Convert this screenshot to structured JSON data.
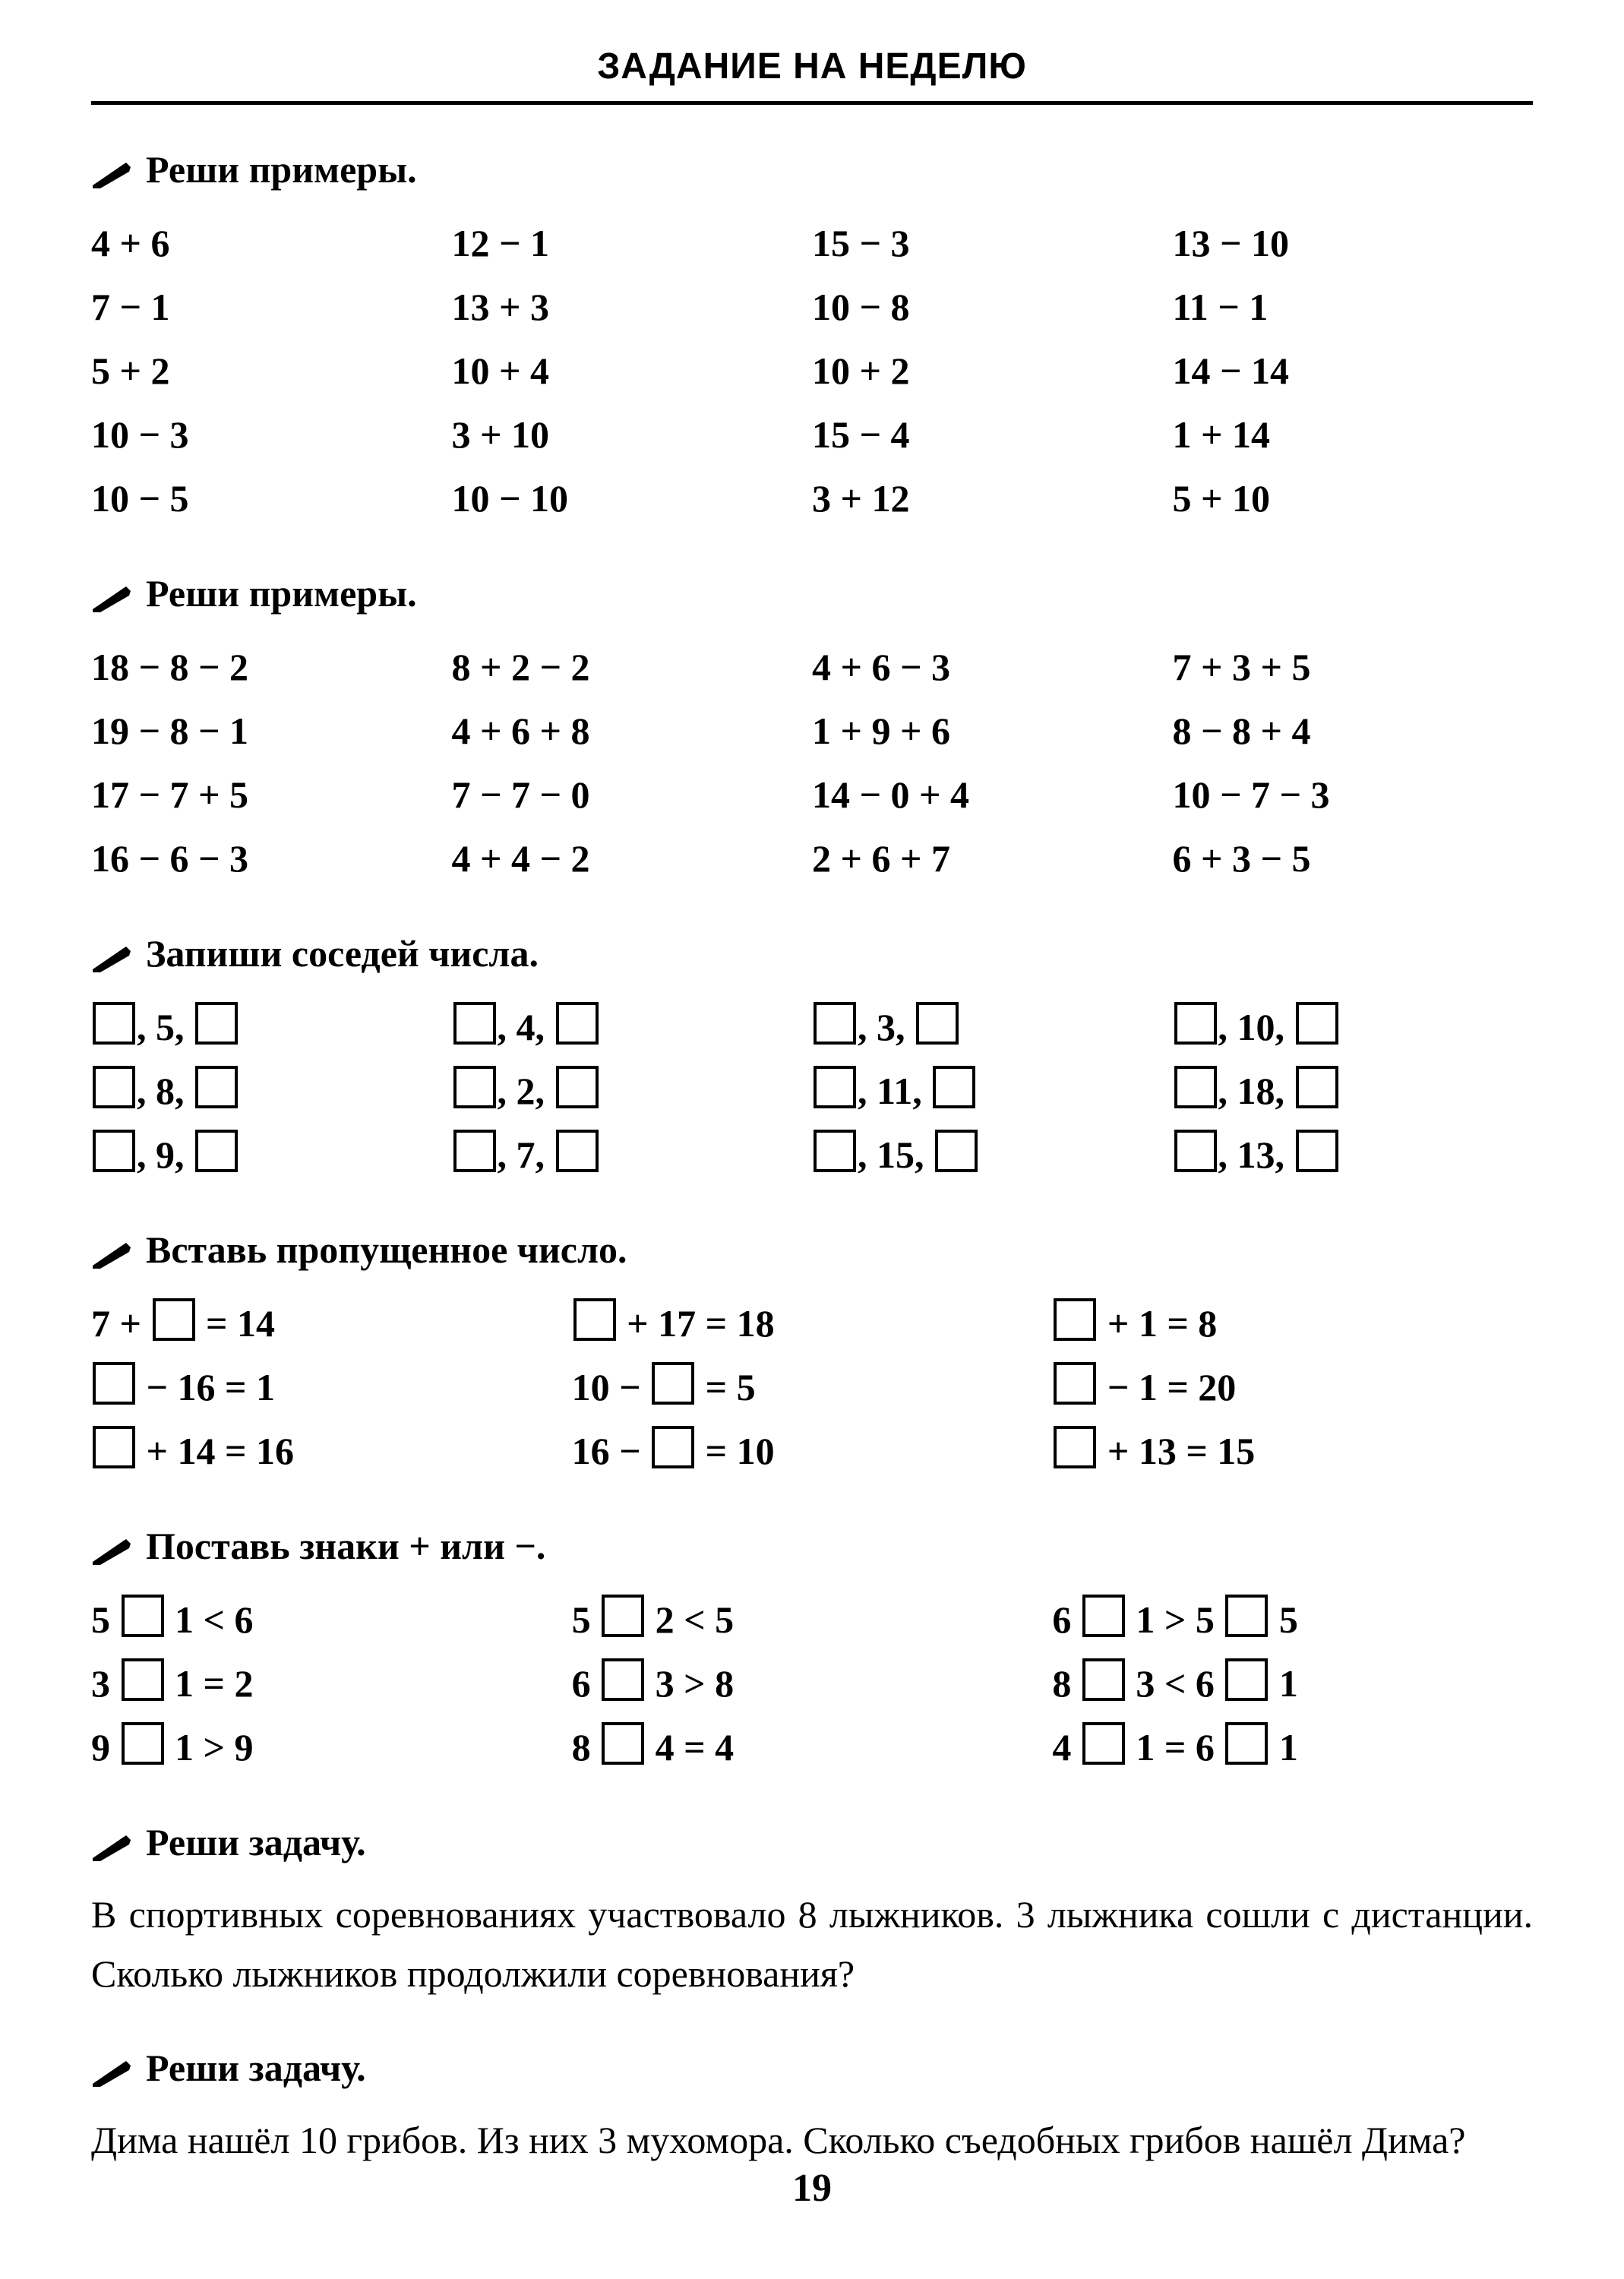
{
  "header": "ЗАДАНИЕ НА НЕДЕЛЮ",
  "page_number": "19",
  "pencil_svg_fill": "#000000",
  "sections": {
    "s1": {
      "title": "Реши примеры.",
      "cols": [
        [
          "4 + 6",
          "7 − 1",
          "5 + 2",
          "10 − 3",
          "10 − 5"
        ],
        [
          "12 − 1",
          "13 + 3",
          "10 + 4",
          "3 + 10",
          "10 − 10"
        ],
        [
          "15 − 3",
          "10 − 8",
          "10 + 2",
          "15 − 4",
          "3 + 12"
        ],
        [
          "13 − 10",
          "11 − 1",
          "14 − 14",
          "1 + 14",
          "5 + 10"
        ]
      ]
    },
    "s2": {
      "title": "Реши примеры.",
      "cols": [
        [
          "18 − 8 − 2",
          "19 − 8 − 1",
          "17 − 7 + 5",
          "16 − 6 − 3"
        ],
        [
          "8 + 2 − 2",
          "4 + 6 + 8",
          "7 − 7 − 0",
          "4 + 4 − 2"
        ],
        [
          "4 + 6 − 3",
          "1 + 9 + 6",
          "14 − 0 + 4",
          "2 + 6 + 7"
        ],
        [
          "7 + 3 + 5",
          "8 − 8 + 4",
          "10 − 7 − 3",
          "6 + 3 − 5"
        ]
      ]
    },
    "s3": {
      "title": "Запиши соседей числа.",
      "cols": [
        [
          "5",
          "8",
          "9"
        ],
        [
          "4",
          "2",
          "7"
        ],
        [
          "3",
          "11",
          "15"
        ],
        [
          "10",
          "18",
          "13"
        ]
      ]
    },
    "s4": {
      "title": "Вставь пропущенное число.",
      "cols": [
        [
          {
            "pre": "7 + ",
            "post": " = 14"
          },
          {
            "pre": "",
            "post": " − 16 = 1"
          },
          {
            "pre": "",
            "post": " + 14 = 16"
          }
        ],
        [
          {
            "pre": "",
            "post": " + 17 = 18"
          },
          {
            "pre": "10 − ",
            "post": " = 5"
          },
          {
            "pre": "16 − ",
            "post": " = 10"
          }
        ],
        [
          {
            "pre": "",
            "post": " + 1 = 8"
          },
          {
            "pre": "",
            "post": " − 1 = 20"
          },
          {
            "pre": "",
            "post": " + 13 = 15"
          }
        ]
      ]
    },
    "s5": {
      "title": "Поставь знаки + или −.",
      "cols": [
        [
          [
            {
              "t": "5 "
            },
            {
              "box": true
            },
            {
              "t": " 1 < 6"
            }
          ],
          [
            {
              "t": "3 "
            },
            {
              "box": true
            },
            {
              "t": " 1 = 2"
            }
          ],
          [
            {
              "t": "9 "
            },
            {
              "box": true
            },
            {
              "t": " 1 > 9"
            }
          ]
        ],
        [
          [
            {
              "t": "5 "
            },
            {
              "box": true
            },
            {
              "t": " 2 < 5"
            }
          ],
          [
            {
              "t": "6 "
            },
            {
              "box": true
            },
            {
              "t": " 3 > 8"
            }
          ],
          [
            {
              "t": "8 "
            },
            {
              "box": true
            },
            {
              "t": " 4 = 4"
            }
          ]
        ],
        [
          [
            {
              "t": "6 "
            },
            {
              "box": true
            },
            {
              "t": " 1 > 5 "
            },
            {
              "box": true
            },
            {
              "t": " 5"
            }
          ],
          [
            {
              "t": "8 "
            },
            {
              "box": true
            },
            {
              "t": " 3 < 6 "
            },
            {
              "box": true
            },
            {
              "t": " 1"
            }
          ],
          [
            {
              "t": "4 "
            },
            {
              "box": true
            },
            {
              "t": " 1 = 6 "
            },
            {
              "box": true
            },
            {
              "t": " 1"
            }
          ]
        ]
      ]
    },
    "s6": {
      "title": "Реши задачу.",
      "text": "В спортивных соревнованиях участвовало 8 лыжников. 3 лыжника сошли с дистанции. Сколько лыжников продолжили соревнования?"
    },
    "s7": {
      "title": "Реши задачу.",
      "text": "Дима нашёл 10 грибов. Из них 3 мухомора. Сколько съедобных грибов нашёл Дима?"
    }
  }
}
